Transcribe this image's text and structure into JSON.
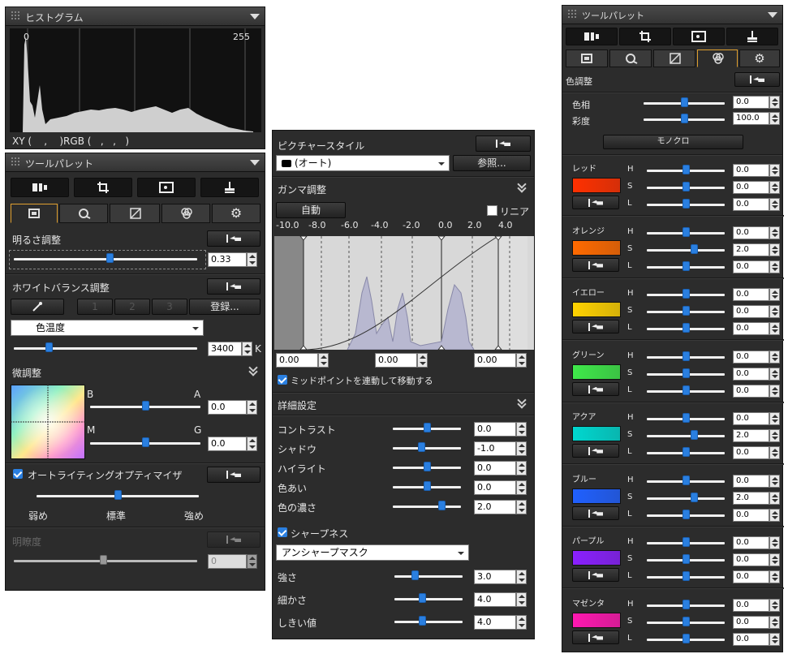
{
  "histogram": {
    "title": "ヒストグラム",
    "axis_min": "0",
    "axis_max": "255",
    "readout": "XY (    ,    )RGB (   ,   ,   )"
  },
  "left_palette": {
    "title": "ツールパレット",
    "brightness": {
      "label": "明るさ調整",
      "value": "0.33",
      "slider_fraction": 0.52
    },
    "wb": {
      "label": "ホワイトバランス調整",
      "presets": [
        "1",
        "2",
        "3"
      ],
      "register": "登録...",
      "mode": "色温度",
      "temp_value": "3400",
      "temp_unit": "K",
      "temp_slider_fraction": 0.19
    },
    "fine": {
      "label": "微調整",
      "b": "B",
      "a": "A",
      "ba_value": "0.0",
      "m": "M",
      "g": "G",
      "mg_value": "0.0"
    },
    "alo": {
      "label": "オートライティングオプティマイザ",
      "low": "弱め",
      "std": "標準",
      "high": "強め"
    },
    "clarity": {
      "label": "明瞭度",
      "value": "0"
    }
  },
  "middle": {
    "picture_style": {
      "label": "ピクチャースタイル",
      "selected": "(オート)",
      "browse": "参照..."
    },
    "gamma": {
      "label": "ガンマ調整",
      "auto": "自動",
      "linear": "リニア",
      "ticks": [
        "-10.0",
        "-8.0",
        "-6.0",
        "-4.0",
        "-2.0",
        "0.0",
        "2.0",
        "4.0"
      ],
      "in_values": [
        "0.00",
        "0.00",
        "0.00"
      ],
      "midpoint": "ミッドポイントを連動して移動する"
    },
    "detail": {
      "label": "詳細設定",
      "rows": [
        {
          "label": "コントラスト",
          "value": "0.0",
          "fraction": 0.5
        },
        {
          "label": "シャドウ",
          "value": "-1.0",
          "fraction": 0.42
        },
        {
          "label": "ハイライト",
          "value": "0.0",
          "fraction": 0.5
        },
        {
          "label": "色あい",
          "value": "0.0",
          "fraction": 0.5
        },
        {
          "label": "色の濃さ",
          "value": "2.0",
          "fraction": 0.72
        }
      ],
      "sharpness": "シャープネス",
      "sharp_mode": "アンシャープマスク",
      "sharp_rows": [
        {
          "label": "強さ",
          "value": "3.0",
          "fraction": 0.3
        },
        {
          "label": "細かさ",
          "value": "4.0",
          "fraction": 0.4
        },
        {
          "label": "しきい値",
          "value": "4.0",
          "fraction": 0.4
        }
      ]
    }
  },
  "right_palette": {
    "title": "ツールパレット",
    "color_adjust": "色調整",
    "hue": {
      "label": "色相",
      "value": "0.0"
    },
    "saturation": {
      "label": "彩度",
      "value": "100.0"
    },
    "mono": "モノクロ",
    "groups": [
      {
        "name": "レッド",
        "color": "#ff3000",
        "h": "0.0",
        "s": "0.0",
        "l": "0.0",
        "sf": 0.5
      },
      {
        "name": "オレンジ",
        "color": "#ff6a00",
        "h": "0.0",
        "s": "2.0",
        "l": "0.0",
        "sf": 0.6
      },
      {
        "name": "イエロー",
        "color": "#ffd200",
        "h": "0.0",
        "s": "0.0",
        "l": "0.0",
        "sf": 0.5
      },
      {
        "name": "グリーン",
        "color": "#3fe84a",
        "h": "0.0",
        "s": "0.0",
        "l": "0.0",
        "sf": 0.5
      },
      {
        "name": "アクア",
        "color": "#00d8d0",
        "h": "0.0",
        "s": "2.0",
        "l": "0.0",
        "sf": 0.6
      },
      {
        "name": "ブルー",
        "color": "#2060ff",
        "h": "0.0",
        "s": "2.0",
        "l": "0.0",
        "sf": 0.6
      },
      {
        "name": "パープル",
        "color": "#8a20ff",
        "h": "0.0",
        "s": "0.0",
        "l": "0.0",
        "sf": 0.5
      },
      {
        "name": "マゼンタ",
        "color": "#ff18b0",
        "h": "0.0",
        "s": "0.0",
        "l": "0.0",
        "sf": 0.5
      }
    ],
    "h_letter": "H",
    "s_letter": "S",
    "l_letter": "L"
  }
}
